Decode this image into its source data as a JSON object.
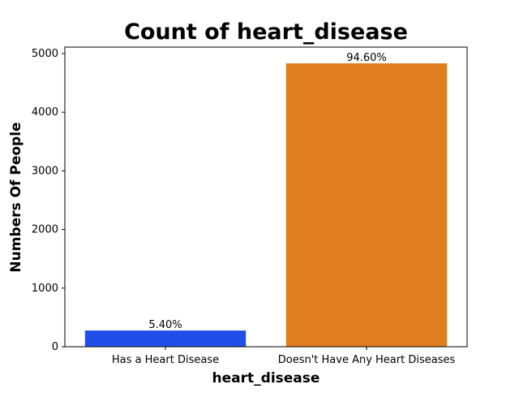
{
  "chart_data": {
    "type": "bar",
    "title": "Count of heart_disease",
    "xlabel": "heart_disease",
    "ylabel": "Numbers Of People",
    "categories": [
      "Has a Heart Disease",
      "Doesn't Have Any Heart Diseases"
    ],
    "values": [
      276,
      4833
    ],
    "bar_labels": [
      "5.40%",
      "94.60%"
    ],
    "colors": [
      "#1f4fe8",
      "#e07d1e"
    ],
    "ylim": [
      0,
      5110
    ],
    "yticks": [
      0,
      1000,
      2000,
      3000,
      4000,
      5000
    ],
    "grid": false,
    "legend": "none"
  }
}
